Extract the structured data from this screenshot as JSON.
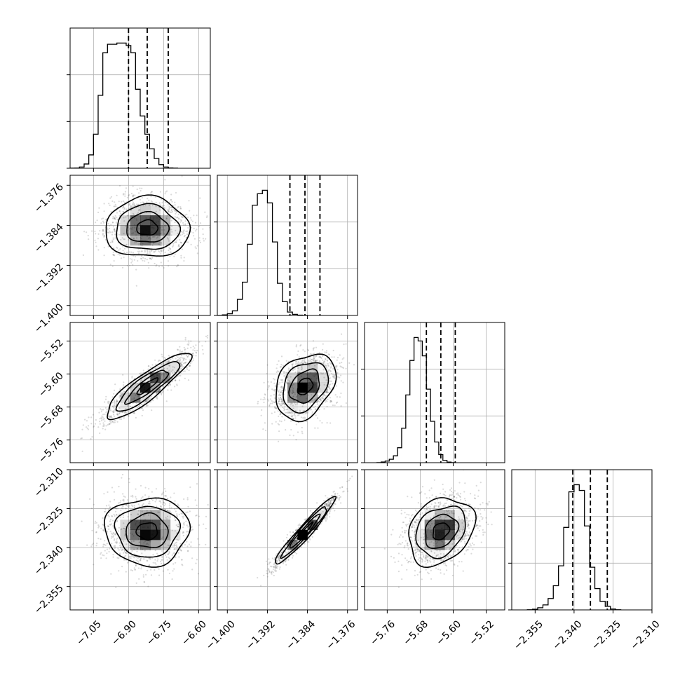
{
  "chart_data": {
    "type": "corner",
    "xlabel": "",
    "ylabel": "",
    "grid": true,
    "parameters": [
      {
        "index": 0,
        "range": [
          -7.15,
          -6.55
        ],
        "ticks": [
          -7.05,
          -6.9,
          -6.75,
          -6.6
        ],
        "tick_labels": [
          "−7.05",
          "−6.90",
          "−6.75",
          "−6.60"
        ],
        "quantiles": [
          -6.9,
          -6.82,
          -6.73
        ],
        "mean": -6.82,
        "std": 0.09,
        "hist": {
          "edges_start": -7.15,
          "bin_width": 0.02,
          "counts": [
            1,
            2,
            10,
            35,
            110,
            280,
            600,
            950,
            1020,
            1020,
            1030,
            1030,
            1010,
            950,
            650,
            430,
            280,
            160,
            80,
            30,
            10,
            3,
            1
          ]
        }
      },
      {
        "index": 1,
        "range": [
          -1.402,
          -1.374
        ],
        "ticks": [
          -1.4,
          -1.392,
          -1.384,
          -1.376
        ],
        "tick_labels": [
          "−1.400",
          "−1.392",
          "−1.384",
          "−1.376"
        ],
        "quantiles": [
          -1.3875,
          -1.3845,
          -1.3815
        ],
        "mean": -1.3845,
        "std": 0.003,
        "hist": {
          "edges_start": -1.402,
          "bin_width": 0.001,
          "counts": [
            1,
            5,
            15,
            40,
            140,
            290,
            620,
            960,
            1060,
            1090,
            980,
            640,
            280,
            120,
            30,
            10,
            3,
            1
          ]
        }
      },
      {
        "index": 2,
        "range": [
          -5.815,
          -5.475
        ],
        "ticks": [
          -5.76,
          -5.68,
          -5.6,
          -5.52
        ],
        "tick_labels": [
          "−5.76",
          "−5.68",
          "−5.60",
          "−5.52"
        ],
        "quantiles": [
          -5.665,
          -5.63,
          -5.595
        ],
        "mean": -5.63,
        "std": 0.04,
        "hist": {
          "edges_start": -5.785,
          "bin_width": 0.01,
          "counts": [
            1,
            6,
            14,
            30,
            60,
            130,
            300,
            590,
            890,
            1090,
            1060,
            930,
            640,
            360,
            180,
            70,
            20,
            5,
            1
          ]
        }
      },
      {
        "index": 3,
        "range": [
          -2.364,
          -2.31
        ],
        "ticks": [
          -2.355,
          -2.34,
          -2.325,
          -2.31
        ],
        "tick_labels": [
          "−2.355",
          "−2.340",
          "−2.325",
          "−2.310"
        ],
        "quantiles": [
          -2.3405,
          -2.3337,
          -2.3272
        ],
        "mean": -2.3337,
        "std": 0.0065,
        "hist": {
          "edges_start": -2.358,
          "bin_width": 0.002,
          "counts": [
            1,
            5,
            15,
            35,
            80,
            170,
            310,
            580,
            830,
            880,
            840,
            590,
            300,
            150,
            60,
            25,
            6,
            1
          ]
        }
      }
    ],
    "pairs": [
      {
        "x": 0,
        "y": 1,
        "correlation": 0.0
      },
      {
        "x": 0,
        "y": 2,
        "correlation": 0.88
      },
      {
        "x": 1,
        "y": 2,
        "correlation": 0.3
      },
      {
        "x": 0,
        "y": 3,
        "correlation": 0.0
      },
      {
        "x": 1,
        "y": 3,
        "correlation": 0.96
      },
      {
        "x": 2,
        "y": 3,
        "correlation": 0.25
      }
    ],
    "contour_levels_sigma": [
      0.5,
      1.0,
      1.5,
      2.0
    ],
    "colors": {
      "line": "#000000",
      "grid": "#b0b0b0",
      "points": "#555555",
      "density": "#000000"
    }
  }
}
